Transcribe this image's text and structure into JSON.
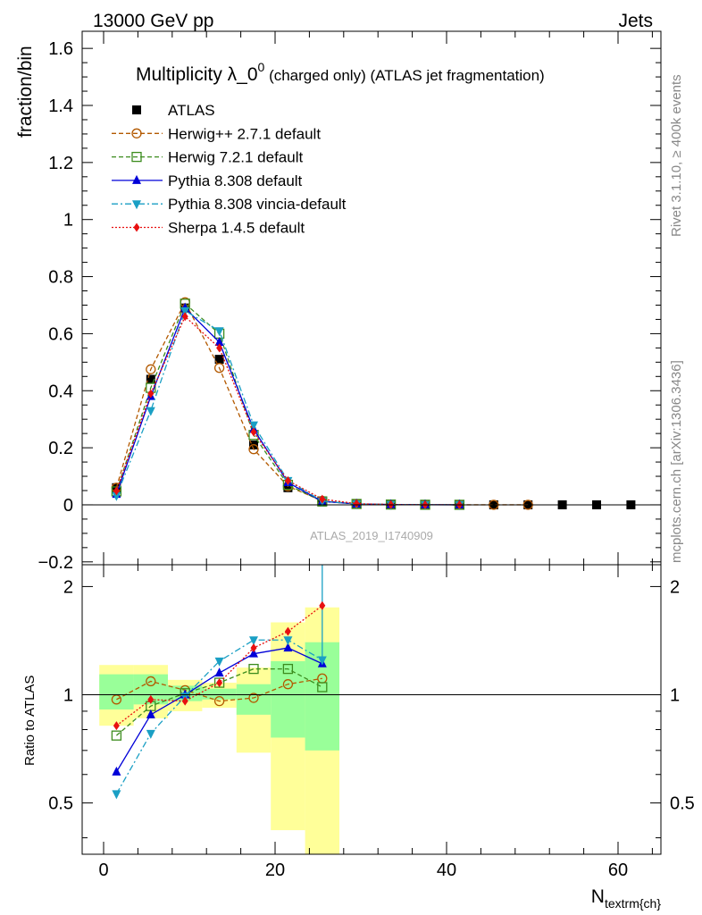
{
  "header": {
    "left": "13000 GeV pp",
    "right": "Jets"
  },
  "side_labels": {
    "rivet": "Rivet 3.1.10, ≥ 400k events",
    "mcplots": "mcplots.cern.ch [arXiv:1306.3436]"
  },
  "watermark": "ATLAS_2019_I1740909",
  "chart_data": [
    {
      "type": "scatter",
      "panel": "main",
      "title": "Multiplicity λ_0",
      "title_superscript": "0",
      "title_suffix": " (charged only) (ATLAS jet fragmentation)",
      "ylabel": "fraction/bin",
      "xlabel": "N",
      "xlabel_subscript": "textrm{ch}",
      "xlim": [
        -2.5,
        65
      ],
      "ylim": [
        -0.21,
        1.66
      ],
      "yticks": [
        -0.2,
        0,
        0.2,
        0.4,
        0.6,
        0.8,
        1,
        1.2,
        1.4,
        1.6
      ],
      "ytick_labels": [
        "−0.2",
        "0",
        "0.2",
        "0.4",
        "0.6",
        "0.8",
        "1",
        "1.2",
        "1.4",
        "1.6"
      ],
      "xticks": [
        0,
        20,
        40,
        60
      ],
      "xtick_labels": [
        "0",
        "20",
        "40",
        "60"
      ],
      "legend_position": "top-left",
      "x": [
        1.5,
        5.5,
        9.5,
        13.5,
        17.5,
        21.5,
        25.5,
        29.5,
        33.5,
        37.5,
        41.5,
        45.5,
        49.5,
        53.5,
        57.5,
        61.5
      ],
      "series": [
        {
          "name": "ATLAS",
          "color": "#000000",
          "marker": "square",
          "line": "none",
          "values": [
            0.06,
            0.44,
            0.69,
            0.51,
            0.21,
            0.06,
            0.01,
            0.003,
            0.001,
            0.0003,
            0.0001,
            0,
            0,
            0,
            0,
            0
          ]
        },
        {
          "name": "Herwig++ 2.7.1 default",
          "color": "#b35900",
          "marker": "circle-open",
          "line": "dashed",
          "values": [
            0.06,
            0.475,
            0.71,
            0.48,
            0.195,
            0.065,
            0.014,
            0.003,
            0.001,
            0.0003,
            0.0001,
            0,
            0
          ]
        },
        {
          "name": "Herwig 7.2.1 default",
          "color": "#3c8c1e",
          "marker": "square-open",
          "line": "dashed",
          "values": [
            0.047,
            0.41,
            0.705,
            0.6,
            0.245,
            0.07,
            0.012,
            0.003,
            0.001,
            0.0003,
            0.0001
          ]
        },
        {
          "name": "Pythia 8.308 default",
          "color": "#0000d8",
          "marker": "triangle-up",
          "line": "solid",
          "values": [
            0.037,
            0.38,
            0.69,
            0.57,
            0.265,
            0.078,
            0.012,
            0.003,
            0.001,
            0.0003,
            0.0001
          ]
        },
        {
          "name": "Pythia 8.308 vincia-default",
          "color": "#1a9fc4",
          "marker": "triangle-down",
          "line": "dashdot",
          "values": [
            0.032,
            0.33,
            0.68,
            0.61,
            0.28,
            0.085,
            0.013,
            0.003,
            0.001,
            0.0003,
            0.0001
          ]
        },
        {
          "name": "Sherpa 1.4.5 default",
          "color": "#e81010",
          "marker": "diamond",
          "line": "dotted",
          "values": [
            0.049,
            0.39,
            0.66,
            0.55,
            0.255,
            0.085,
            0.02,
            0.004,
            0.001,
            0.0003,
            0.0001
          ]
        }
      ]
    },
    {
      "type": "line",
      "panel": "ratio",
      "ylabel": "Ratio to ATLAS",
      "ylim": [
        0.36,
        2.3
      ],
      "ylog": true,
      "yticks": [
        0.5,
        1,
        2
      ],
      "ytick_labels": [
        "0.5",
        "1",
        "2"
      ],
      "x": [
        1.5,
        5.5,
        9.5,
        13.5,
        17.5,
        21.5,
        25.5
      ],
      "bands": {
        "edges": [
          -0.5,
          3.5,
          7.5,
          11.5,
          15.5,
          19.5,
          23.5,
          27.5
        ],
        "stat_color": "#99ff99",
        "total_color": "#ffff99",
        "stat": [
          [
            0.91,
            1.14
          ],
          [
            0.94,
            1.14
          ],
          [
            0.96,
            1.06
          ],
          [
            0.97,
            1.04
          ],
          [
            0.88,
            1.07
          ],
          [
            0.76,
            1.24
          ],
          [
            0.7,
            1.4
          ]
        ],
        "total": [
          [
            0.82,
            1.21
          ],
          [
            0.86,
            1.21
          ],
          [
            0.9,
            1.1
          ],
          [
            0.92,
            1.08
          ],
          [
            0.69,
            1.19
          ],
          [
            0.42,
            1.59
          ],
          [
            0.36,
            1.75
          ]
        ]
      },
      "series": [
        {
          "name": "Herwig++ 2.7.1 default",
          "color": "#b35900",
          "marker": "circle-open",
          "line": "dashed",
          "values": [
            0.97,
            1.09,
            1.03,
            0.96,
            0.98,
            1.07,
            1.11
          ]
        },
        {
          "name": "Herwig 7.2.1 default",
          "color": "#3c8c1e",
          "marker": "square-open",
          "line": "dashed",
          "values": [
            0.77,
            0.93,
            1.01,
            1.08,
            1.18,
            1.18,
            1.05
          ]
        },
        {
          "name": "Pythia 8.308 default",
          "color": "#0000d8",
          "marker": "triangle-up",
          "line": "solid",
          "values": [
            0.61,
            0.88,
            1.0,
            1.15,
            1.3,
            1.35,
            1.22
          ]
        },
        {
          "name": "Pythia 8.308 vincia-default",
          "color": "#1a9fc4",
          "marker": "triangle-down",
          "line": "dashdot",
          "values": [
            0.53,
            0.78,
            0.99,
            1.24,
            1.42,
            1.42,
            1.25
          ]
        },
        {
          "name": "Sherpa 1.4.5 default",
          "color": "#e81010",
          "marker": "diamond",
          "line": "dotted",
          "values": [
            0.82,
            0.97,
            0.96,
            1.08,
            1.35,
            1.5,
            1.77
          ]
        }
      ],
      "error_bar": {
        "x": 25.5,
        "range": [
          1.22,
          3.0
        ]
      }
    }
  ]
}
